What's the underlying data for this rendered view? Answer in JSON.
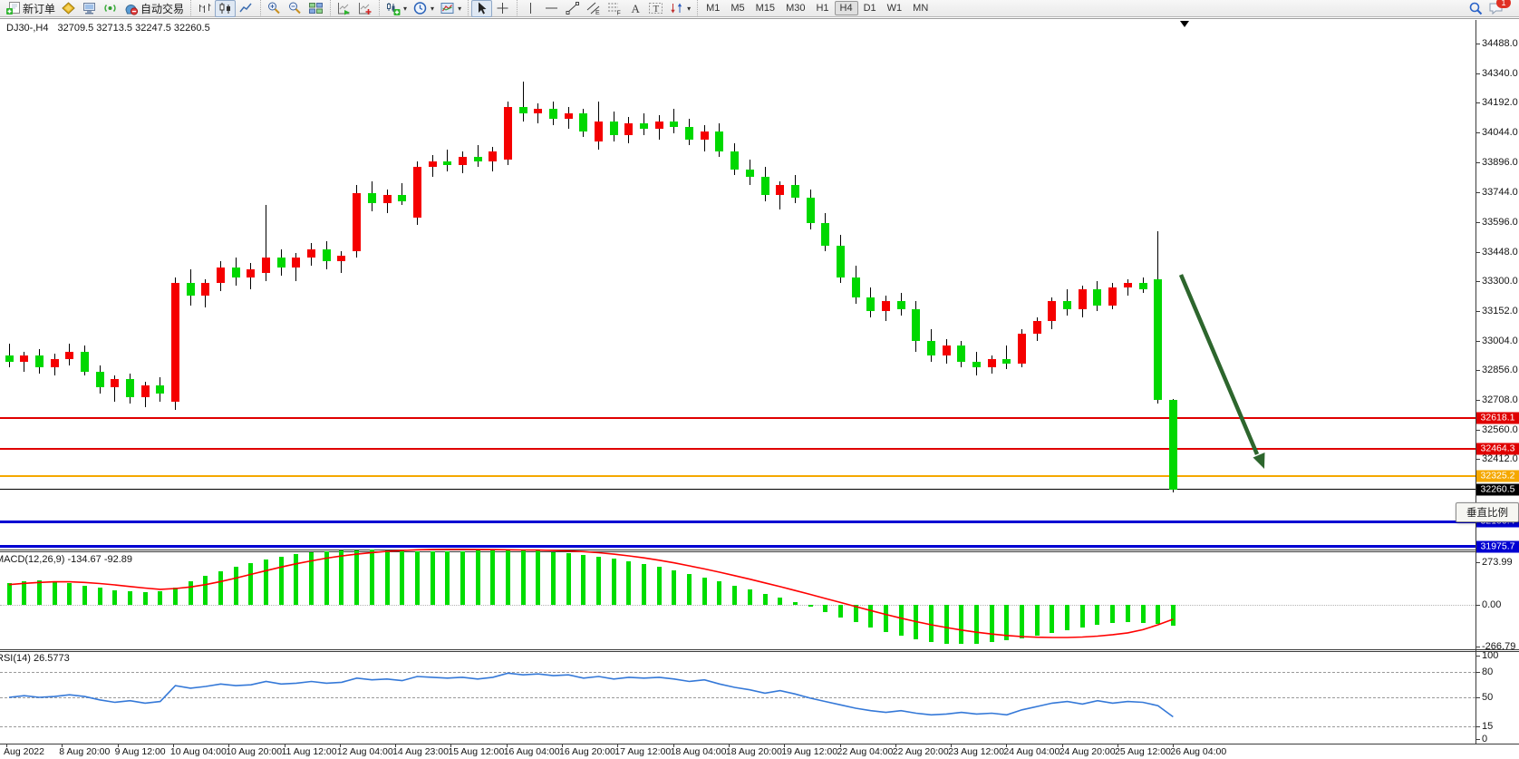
{
  "window": {
    "badge_count": "1"
  },
  "toolbar": {
    "groups": [
      [
        {
          "icon": "new-order-icon",
          "label": "新订单"
        },
        {
          "icon": "gold-icon"
        },
        {
          "icon": "terminal-icon"
        },
        {
          "icon": "signal-icon"
        },
        {
          "icon": "autotrade-icon",
          "label": "自动交易"
        }
      ],
      [
        {
          "icon": "bar-chart-icon"
        },
        {
          "icon": "candlestick-icon",
          "pressed": true
        },
        {
          "icon": "line-chart-icon"
        }
      ],
      [
        {
          "icon": "zoom-in-icon"
        },
        {
          "icon": "zoom-out-icon"
        },
        {
          "icon": "tile-windows-icon"
        }
      ],
      [
        {
          "icon": "auto-scroll-icon"
        },
        {
          "icon": "chart-shift-icon"
        }
      ],
      [
        {
          "icon": "indicators-icon",
          "dropdown": true
        },
        {
          "icon": "periods-icon",
          "dropdown": true
        },
        {
          "icon": "template-icon",
          "dropdown": true
        }
      ],
      [
        {
          "icon": "cursor-icon",
          "pressed": true
        },
        {
          "icon": "crosshair-icon"
        }
      ],
      [
        {
          "icon": "vline-icon"
        },
        {
          "icon": "hline-icon"
        },
        {
          "icon": "trendline-icon"
        },
        {
          "icon": "channel-icon"
        },
        {
          "icon": "fibonacci-icon"
        },
        {
          "icon": "text-icon"
        },
        {
          "icon": "text-label-icon"
        },
        {
          "icon": "arrows-icon",
          "dropdown": true
        }
      ],
      []
    ],
    "timeframes": [
      "M1",
      "M5",
      "M15",
      "M30",
      "H1",
      "H4",
      "D1",
      "W1",
      "MN"
    ],
    "active_timeframe": "H4"
  },
  "chart": {
    "symbol_period": "DJ30-,H4",
    "ohlc": "32709.5 32713.5 32247.5 32260.5",
    "tooltip": "垂直比例",
    "price_ticks": [
      34488.0,
      34340.0,
      34192.0,
      34044.0,
      33896.0,
      33744.0,
      33596.0,
      33448.0,
      33300.0,
      33152.0,
      33004.0,
      32856.0,
      32708.0,
      32560.0,
      32412.0
    ],
    "levels": [
      {
        "label": "32618.1",
        "price": 32618.1,
        "color": "#e00000",
        "weight": 2,
        "kind": "resistance-line"
      },
      {
        "label": "32464.3",
        "price": 32464.3,
        "color": "#e00000",
        "weight": 2,
        "kind": "resistance-line"
      },
      {
        "label": "32325.2",
        "price": 32325.2,
        "color": "#f5a800",
        "weight": 2,
        "kind": "support-line"
      },
      {
        "label": "32260.5",
        "price": 32260.5,
        "color": "#000000",
        "weight": 1,
        "kind": "current-price-line"
      },
      {
        "label": "32100.4",
        "price": 32100.4,
        "color": "#0000d2",
        "weight": 3,
        "kind": "support-line"
      },
      {
        "label": "31975.7",
        "price": 31975.7,
        "color": "#0000d2",
        "weight": 3,
        "kind": "support-line"
      }
    ]
  },
  "macd": {
    "label": "MACD(12,26,9) -134.67 -92.89",
    "axis": [
      {
        "v": 273.99,
        "t": "273.99"
      },
      {
        "v": 0,
        "t": "0.00"
      },
      {
        "v": -266.79,
        "t": "-266.79"
      }
    ]
  },
  "rsi": {
    "label": "RSI(14) 26.5773",
    "axis": [
      {
        "v": 100,
        "t": "100"
      },
      {
        "v": 80,
        "t": "80",
        "dash": true
      },
      {
        "v": 50,
        "t": "50",
        "dash": true
      },
      {
        "v": 15,
        "t": "15",
        "dash": true
      },
      {
        "v": 0,
        "t": "0"
      }
    ]
  },
  "time_axis": [
    "Aug 2022",
    "8 Aug 20:00",
    "9 Aug 12:00",
    "10 Aug 04:00",
    "10 Aug 20:00",
    "11 Aug 12:00",
    "12 Aug 04:00",
    "14 Aug 23:00",
    "15 Aug 12:00",
    "16 Aug 04:00",
    "16 Aug 20:00",
    "17 Aug 12:00",
    "18 Aug 04:00",
    "18 Aug 20:00",
    "19 Aug 12:00",
    "22 Aug 04:00",
    "22 Aug 20:00",
    "23 Aug 12:00",
    "24 Aug 04:00",
    "24 Aug 20:00",
    "25 Aug 12:00",
    "26 Aug 04:00"
  ],
  "chart_data": {
    "type": "candlestick",
    "symbol": "DJ30-",
    "period": "H4",
    "up_color": "#f50000",
    "down_color": "#00d800",
    "price_range": [
      31900,
      34500
    ],
    "candles": [
      [
        32930,
        32990,
        32870,
        32900
      ],
      [
        32900,
        32950,
        32850,
        32930
      ],
      [
        32930,
        32960,
        32840,
        32870
      ],
      [
        32870,
        32940,
        32830,
        32910
      ],
      [
        32910,
        32990,
        32880,
        32950
      ],
      [
        32950,
        32980,
        32830,
        32850
      ],
      [
        32850,
        32880,
        32740,
        32770
      ],
      [
        32770,
        32830,
        32700,
        32810
      ],
      [
        32810,
        32840,
        32690,
        32720
      ],
      [
        32720,
        32800,
        32670,
        32780
      ],
      [
        32780,
        32820,
        32700,
        32740
      ],
      [
        32700,
        33320,
        32660,
        33290
      ],
      [
        33290,
        33360,
        33180,
        33230
      ],
      [
        33230,
        33310,
        33170,
        33290
      ],
      [
        33290,
        33400,
        33250,
        33370
      ],
      [
        33370,
        33420,
        33280,
        33320
      ],
      [
        33320,
        33390,
        33260,
        33360
      ],
      [
        33340,
        33680,
        33300,
        33420
      ],
      [
        33420,
        33460,
        33330,
        33370
      ],
      [
        33370,
        33440,
        33300,
        33420
      ],
      [
        33420,
        33490,
        33380,
        33460
      ],
      [
        33460,
        33500,
        33360,
        33400
      ],
      [
        33400,
        33450,
        33340,
        33430
      ],
      [
        33450,
        33780,
        33420,
        33740
      ],
      [
        33740,
        33800,
        33650,
        33690
      ],
      [
        33690,
        33760,
        33640,
        33730
      ],
      [
        33730,
        33790,
        33680,
        33700
      ],
      [
        33620,
        33900,
        33580,
        33870
      ],
      [
        33870,
        33930,
        33820,
        33900
      ],
      [
        33900,
        33960,
        33850,
        33880
      ],
      [
        33880,
        33950,
        33840,
        33920
      ],
      [
        33920,
        33980,
        33870,
        33900
      ],
      [
        33900,
        33970,
        33850,
        33950
      ],
      [
        33910,
        34200,
        33880,
        34170
      ],
      [
        34170,
        34300,
        34100,
        34140
      ],
      [
        34140,
        34190,
        34090,
        34160
      ],
      [
        34160,
        34200,
        34080,
        34110
      ],
      [
        34110,
        34170,
        34060,
        34140
      ],
      [
        34140,
        34160,
        34020,
        34050
      ],
      [
        34000,
        34200,
        33960,
        34100
      ],
      [
        34100,
        34150,
        34000,
        34030
      ],
      [
        34030,
        34120,
        33990,
        34090
      ],
      [
        34090,
        34140,
        34030,
        34060
      ],
      [
        34060,
        34130,
        34010,
        34100
      ],
      [
        34100,
        34160,
        34040,
        34070
      ],
      [
        34070,
        34110,
        33980,
        34010
      ],
      [
        34010,
        34080,
        33950,
        34050
      ],
      [
        34050,
        34090,
        33920,
        33950
      ],
      [
        33950,
        33990,
        33830,
        33860
      ],
      [
        33860,
        33910,
        33780,
        33820
      ],
      [
        33820,
        33870,
        33700,
        33730
      ],
      [
        33730,
        33800,
        33660,
        33780
      ],
      [
        33780,
        33830,
        33690,
        33720
      ],
      [
        33720,
        33760,
        33560,
        33590
      ],
      [
        33590,
        33640,
        33450,
        33480
      ],
      [
        33480,
        33530,
        33290,
        33320
      ],
      [
        33320,
        33380,
        33190,
        33220
      ],
      [
        33220,
        33270,
        33120,
        33150
      ],
      [
        33150,
        33230,
        33100,
        33200
      ],
      [
        33200,
        33240,
        33130,
        33160
      ],
      [
        33160,
        33200,
        32950,
        33000
      ],
      [
        33000,
        33060,
        32900,
        32930
      ],
      [
        32930,
        33010,
        32890,
        32980
      ],
      [
        32980,
        33000,
        32870,
        32900
      ],
      [
        32900,
        32950,
        32830,
        32870
      ],
      [
        32870,
        32930,
        32840,
        32910
      ],
      [
        32910,
        32980,
        32860,
        32890
      ],
      [
        32890,
        33060,
        32870,
        33040
      ],
      [
        33040,
        33120,
        33000,
        33100
      ],
      [
        33100,
        33220,
        33060,
        33200
      ],
      [
        33200,
        33260,
        33130,
        33160
      ],
      [
        33160,
        33280,
        33120,
        33260
      ],
      [
        33260,
        33300,
        33150,
        33180
      ],
      [
        33180,
        33290,
        33160,
        33270
      ],
      [
        33270,
        33310,
        33230,
        33290
      ],
      [
        33290,
        33320,
        33240,
        33260
      ],
      [
        33310,
        33550,
        32690,
        32709.5
      ],
      [
        32709.5,
        32713.5,
        32247.5,
        32260.5
      ]
    ],
    "macd_histogram": [
      140,
      150,
      155,
      150,
      140,
      125,
      110,
      95,
      85,
      80,
      90,
      110,
      150,
      185,
      215,
      245,
      270,
      292,
      310,
      325,
      336,
      344,
      349,
      352,
      353,
      351,
      349,
      346,
      344,
      343,
      345,
      348,
      351,
      353,
      351,
      347,
      341,
      333,
      323,
      311,
      297,
      281,
      263,
      243,
      221,
      198,
      174,
      149,
      123,
      97,
      71,
      45,
      17,
      -13,
      -45,
      -79,
      -113,
      -145,
      -175,
      -201,
      -223,
      -239,
      -249,
      -252,
      -249,
      -241,
      -229,
      -214,
      -197,
      -179,
      -161,
      -144,
      -129,
      -117,
      -111,
      -114,
      -124,
      -134.67
    ],
    "macd_signal": [
      130,
      138,
      144,
      148,
      148,
      144,
      137,
      128,
      118,
      108,
      100,
      105,
      115,
      130,
      150,
      172,
      196,
      220,
      243,
      264,
      283,
      300,
      314,
      326,
      336,
      344,
      350,
      354,
      356,
      357,
      357,
      356,
      355,
      354,
      353,
      352,
      350,
      347,
      342,
      335,
      326,
      315,
      302,
      287,
      270,
      251,
      231,
      210,
      188,
      165,
      141,
      117,
      92,
      67,
      41,
      15,
      -11,
      -37,
      -62,
      -86,
      -108,
      -128,
      -146,
      -162,
      -176,
      -188,
      -197,
      -204,
      -208,
      -210,
      -210,
      -207,
      -201,
      -192,
      -180,
      -160,
      -128,
      -92.89
    ],
    "rsi_values": [
      50,
      52,
      50,
      51,
      53,
      51,
      47,
      44,
      46,
      43,
      45,
      64,
      61,
      63,
      66,
      64,
      65,
      69,
      66,
      67,
      69,
      67,
      68,
      73,
      71,
      72,
      70,
      75,
      74,
      73,
      74,
      72,
      74,
      79,
      77,
      78,
      76,
      77,
      73,
      75,
      72,
      74,
      73,
      74,
      72,
      69,
      71,
      66,
      62,
      59,
      55,
      58,
      54,
      49,
      45,
      41,
      37,
      34,
      32,
      34,
      31,
      29,
      30,
      32,
      30,
      31,
      29,
      35,
      39,
      43,
      45,
      42,
      46,
      43,
      45,
      44,
      40,
      26.58
    ]
  }
}
